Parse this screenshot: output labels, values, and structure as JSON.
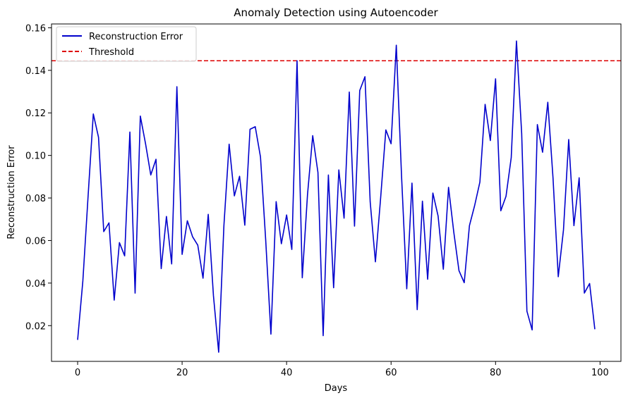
{
  "chart_data": {
    "type": "line",
    "title": "Anomaly Detection using Autoencoder",
    "xlabel": "Days",
    "ylabel": "Reconstruction Error",
    "xlim": [
      -5,
      104
    ],
    "ylim": [
      0.0032,
      0.1618
    ],
    "xticks": [
      0,
      20,
      40,
      60,
      80,
      100
    ],
    "yticks": [
      0.02,
      0.04,
      0.06,
      0.08,
      0.1,
      0.12,
      0.14,
      0.16
    ],
    "ytick_labels": [
      "0.02",
      "0.04",
      "0.06",
      "0.08",
      "0.10",
      "0.12",
      "0.14",
      "0.16"
    ],
    "grid": false,
    "legend_position": "upper-left",
    "series": [
      {
        "name": "Reconstruction Error",
        "color": "#0000cc",
        "style": "solid",
        "x": [
          0,
          1,
          2,
          3,
          4,
          5,
          6,
          7,
          8,
          9,
          10,
          11,
          12,
          13,
          14,
          15,
          16,
          17,
          18,
          19,
          20,
          21,
          22,
          23,
          24,
          25,
          26,
          27,
          28,
          29,
          30,
          31,
          32,
          33,
          34,
          35,
          36,
          37,
          38,
          39,
          40,
          41,
          42,
          43,
          44,
          45,
          46,
          47,
          48,
          49,
          50,
          51,
          52,
          53,
          54,
          55,
          56,
          57,
          58,
          59,
          60,
          61,
          62,
          63,
          64,
          65,
          66,
          67,
          68,
          69,
          70,
          71,
          72,
          73,
          74,
          75,
          76,
          77,
          78,
          79,
          80,
          81,
          82,
          83,
          84,
          85,
          86,
          87,
          88,
          89,
          90,
          91,
          92,
          93,
          94,
          95,
          96,
          97,
          98,
          99
        ],
        "values": [
          0.0133,
          0.041,
          0.0808,
          0.1195,
          0.1085,
          0.0642,
          0.0683,
          0.032,
          0.059,
          0.0528,
          0.111,
          0.0353,
          0.1185,
          0.1055,
          0.0908,
          0.0982,
          0.0468,
          0.0713,
          0.049,
          0.1323,
          0.0535,
          0.0693,
          0.0618,
          0.0578,
          0.0423,
          0.0723,
          0.034,
          0.0075,
          0.067,
          0.1053,
          0.081,
          0.0902,
          0.0672,
          0.1123,
          0.1135,
          0.0993,
          0.0602,
          0.016,
          0.0783,
          0.0585,
          0.072,
          0.0558,
          0.1445,
          0.0425,
          0.0815,
          0.1093,
          0.092,
          0.0153,
          0.0908,
          0.0378,
          0.0932,
          0.0705,
          0.1298,
          0.0668,
          0.1305,
          0.137,
          0.0782,
          0.05,
          0.08,
          0.112,
          0.1055,
          0.1518,
          0.0905,
          0.0373,
          0.087,
          0.0275,
          0.0785,
          0.0418,
          0.0823,
          0.0715,
          0.0465,
          0.085,
          0.064,
          0.0458,
          0.0402,
          0.067,
          0.0765,
          0.0875,
          0.124,
          0.107,
          0.136,
          0.074,
          0.0808,
          0.099,
          0.1538,
          0.1103,
          0.0268,
          0.018,
          0.1145,
          0.1015,
          0.125,
          0.0893,
          0.043,
          0.065,
          0.1075,
          0.067,
          0.0895,
          0.0353,
          0.0398,
          0.0183
        ]
      },
      {
        "name": "Threshold",
        "color": "#dd0000",
        "style": "dashed",
        "values": [
          0.1445,
          0.1445
        ]
      }
    ]
  }
}
